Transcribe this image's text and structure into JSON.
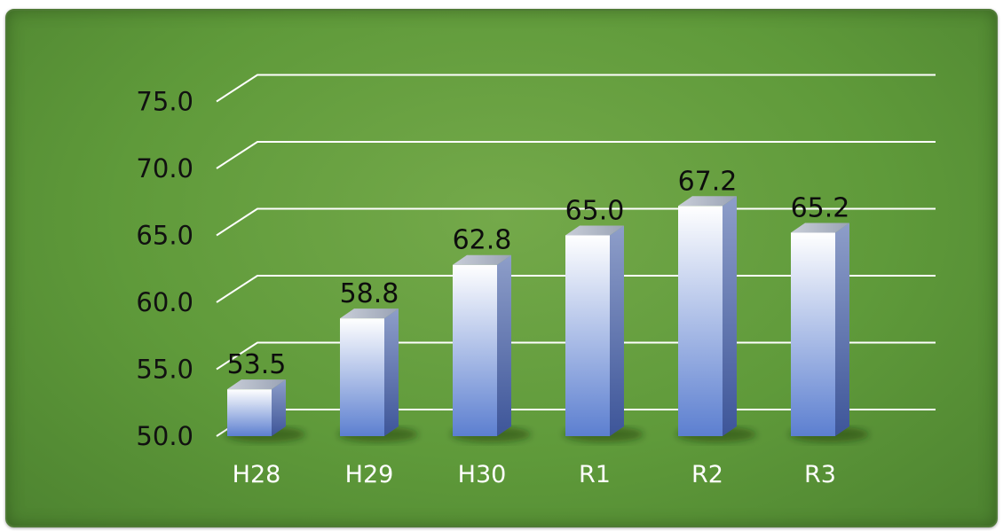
{
  "chart_data": {
    "type": "bar",
    "style": "3d-column",
    "title": "",
    "xlabel": "",
    "ylabel": "",
    "categories": [
      "H28",
      "H29",
      "H30",
      "R1",
      "R2",
      "R3"
    ],
    "values": [
      53.5,
      58.8,
      62.8,
      65.0,
      67.2,
      65.2
    ],
    "data_labels": [
      "53.5",
      "58.8",
      "62.8",
      "65.0",
      "67.2",
      "65.2"
    ],
    "ylim": [
      50.0,
      75.0
    ],
    "yticks": [
      "50.0",
      "55.0",
      "60.0",
      "65.0",
      "70.0",
      "75.0"
    ],
    "ytick_values": [
      50,
      55,
      60,
      65,
      70,
      75
    ],
    "grid": true,
    "legend": "none",
    "colors": {
      "background": "#65a040",
      "bar_top": "#ffffff",
      "bar_bottom": "#5c7fd0",
      "bar_side": "#4a62a6",
      "gridline": "#ffffff"
    }
  }
}
